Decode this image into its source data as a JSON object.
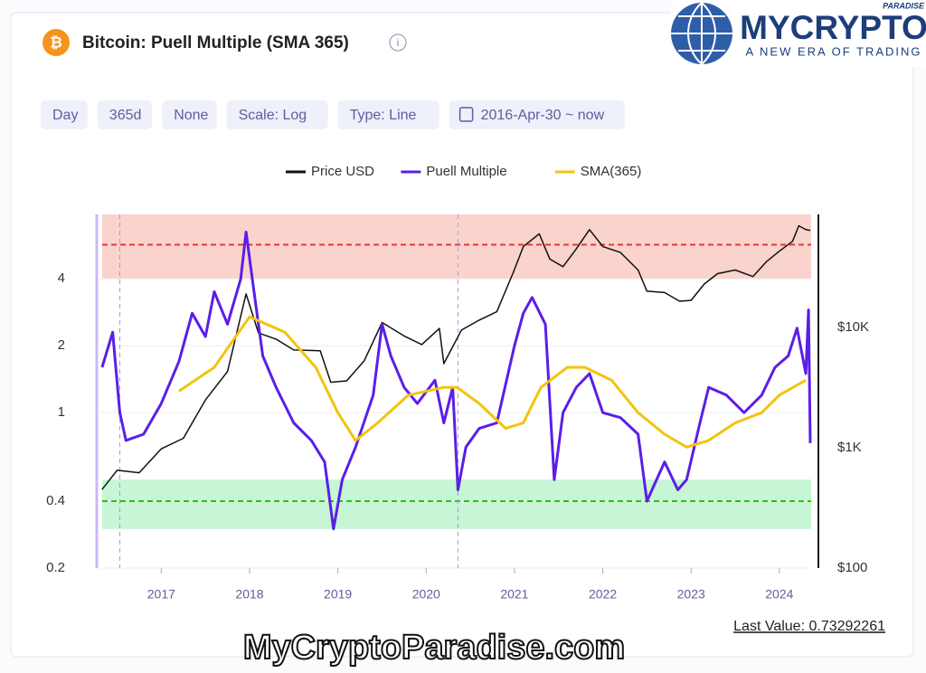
{
  "header": {
    "icon": "₿",
    "title": "Bitcoin: Puell Multiple (SMA 365)",
    "info": "i"
  },
  "controls": [
    "Day",
    "365d",
    "None",
    "Scale: Log",
    "Type: Line",
    "2016-Apr-30 ~ now"
  ],
  "last_value": "Last Value: 0.73292261",
  "watermark": "MyCryptoParadise.com",
  "logo": {
    "name": "MYCRYPTO",
    "top": "PARADISE",
    "tagline": "A NEW ERA OF TRADING"
  },
  "chart_data": {
    "type": "line",
    "ylog": true,
    "y2log": true,
    "grid": true,
    "xlim": [
      2016.3,
      2024.36
    ],
    "xticks": [
      2017,
      2018,
      2019,
      2020,
      2021,
      2022,
      2023,
      2024
    ],
    "ylim": [
      0.2,
      7.8
    ],
    "yticks": [
      0.2,
      0.4,
      1,
      2,
      4
    ],
    "y2lim": [
      100,
      87000
    ],
    "y2ticks": [
      {
        "value": 100,
        "label": "$100"
      },
      {
        "value": 1000,
        "label": "$1K"
      },
      {
        "value": 10000,
        "label": "$10K"
      }
    ],
    "bands": [
      {
        "from": 4,
        "to": 7.8,
        "color": "#fad3cd"
      },
      {
        "from": 0.3,
        "to": 0.5,
        "color": "#c6f6d6"
      }
    ],
    "thresholds": [
      {
        "value": 5.7,
        "color": "#e53935"
      },
      {
        "value": 0.4,
        "color": "#2fbf10"
      }
    ],
    "halvings": [
      2016.53,
      2020.36
    ],
    "series": [
      {
        "name": "Price USD",
        "color": "#111111",
        "axis": "y2",
        "x": [
          2016.33,
          2016.5,
          2016.75,
          2017.0,
          2017.25,
          2017.5,
          2017.75,
          2017.96,
          2018.1,
          2018.3,
          2018.5,
          2018.8,
          2018.92,
          2019.1,
          2019.3,
          2019.5,
          2019.75,
          2019.95,
          2020.15,
          2020.2,
          2020.4,
          2020.6,
          2020.8,
          2020.99,
          2021.1,
          2021.28,
          2021.4,
          2021.55,
          2021.7,
          2021.85,
          2022.0,
          2022.2,
          2022.4,
          2022.5,
          2022.7,
          2022.87,
          2023.0,
          2023.15,
          2023.3,
          2023.5,
          2023.7,
          2023.85,
          2024.0,
          2024.15,
          2024.22,
          2024.3,
          2024.35
        ],
        "values": [
          450,
          650,
          620,
          980,
          1200,
          2500,
          4300,
          19000,
          9000,
          8000,
          6500,
          6400,
          3500,
          3600,
          5300,
          11000,
          8500,
          7200,
          9800,
          5000,
          9500,
          11500,
          13500,
          29000,
          47000,
          60000,
          37000,
          32000,
          45000,
          65000,
          47000,
          42000,
          30000,
          20000,
          19500,
          16500,
          16800,
          23000,
          28000,
          30000,
          26500,
          35000,
          43000,
          52000,
          70000,
          65000,
          64000
        ]
      },
      {
        "name": "Puell Multiple",
        "color": "#5b1ee8",
        "axis": "y",
        "x": [
          2016.33,
          2016.45,
          2016.53,
          2016.6,
          2016.8,
          2017.0,
          2017.2,
          2017.35,
          2017.5,
          2017.6,
          2017.75,
          2017.9,
          2017.96,
          2018.05,
          2018.15,
          2018.3,
          2018.5,
          2018.7,
          2018.85,
          2018.95,
          2019.05,
          2019.2,
          2019.4,
          2019.5,
          2019.6,
          2019.75,
          2019.9,
          2020.1,
          2020.2,
          2020.3,
          2020.36,
          2020.45,
          2020.6,
          2020.8,
          2021.0,
          2021.1,
          2021.2,
          2021.35,
          2021.45,
          2021.55,
          2021.7,
          2021.85,
          2022.0,
          2022.2,
          2022.4,
          2022.5,
          2022.7,
          2022.85,
          2022.95,
          2023.1,
          2023.2,
          2023.4,
          2023.6,
          2023.8,
          2023.95,
          2024.1,
          2024.2,
          2024.3,
          2024.33,
          2024.35
        ],
        "values": [
          1.6,
          2.3,
          1.0,
          0.75,
          0.8,
          1.1,
          1.7,
          2.8,
          2.2,
          3.5,
          2.5,
          4.0,
          6.5,
          3.5,
          1.8,
          1.3,
          0.9,
          0.75,
          0.6,
          0.3,
          0.5,
          0.7,
          1.2,
          2.5,
          1.8,
          1.3,
          1.1,
          1.4,
          0.9,
          1.3,
          0.45,
          0.7,
          0.85,
          0.9,
          2.0,
          2.8,
          3.3,
          2.5,
          0.5,
          1.0,
          1.3,
          1.5,
          1.0,
          0.95,
          0.8,
          0.4,
          0.6,
          0.45,
          0.5,
          0.9,
          1.3,
          1.2,
          1.0,
          1.2,
          1.6,
          1.8,
          2.4,
          1.5,
          2.9,
          0.73
        ]
      },
      {
        "name": "SMA(365)",
        "color": "#f2c40c",
        "axis": "y",
        "x": [
          2017.2,
          2017.6,
          2018.0,
          2018.4,
          2018.75,
          2019.0,
          2019.2,
          2019.45,
          2019.8,
          2020.2,
          2020.35,
          2020.6,
          2020.9,
          2021.1,
          2021.3,
          2021.6,
          2021.8,
          2022.1,
          2022.4,
          2022.7,
          2022.95,
          2023.2,
          2023.5,
          2023.8,
          2024.0,
          2024.3
        ],
        "values": [
          1.25,
          1.6,
          2.7,
          2.3,
          1.6,
          1.0,
          0.75,
          0.9,
          1.2,
          1.3,
          1.3,
          1.1,
          0.85,
          0.9,
          1.3,
          1.6,
          1.6,
          1.4,
          1.0,
          0.8,
          0.7,
          0.75,
          0.9,
          1.0,
          1.2,
          1.4
        ]
      }
    ]
  }
}
